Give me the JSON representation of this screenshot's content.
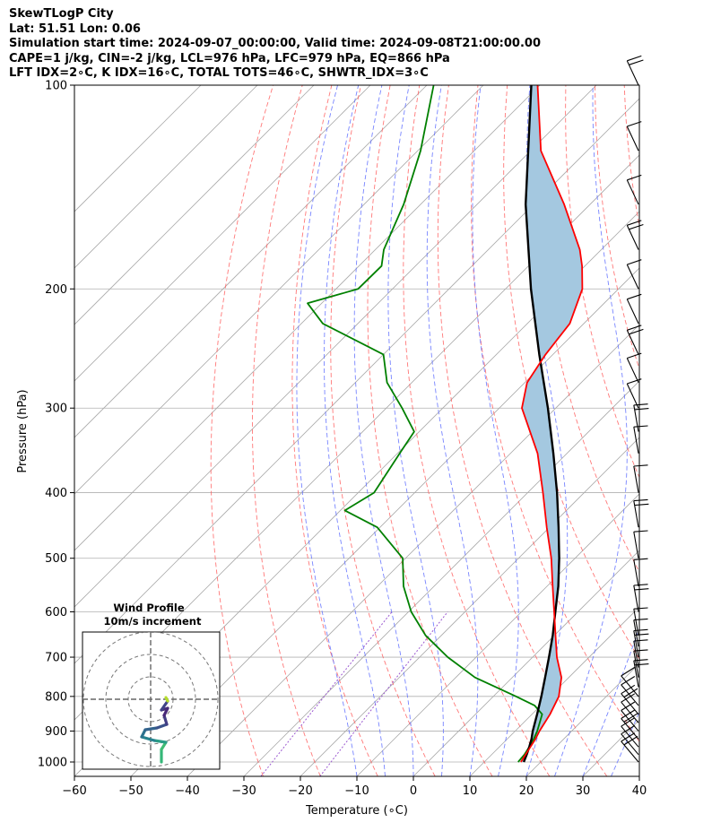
{
  "header": {
    "line1": "SkewTLogP City",
    "line2": "Lat: 51.51   Lon: 0.06",
    "line3": "Simulation start time: 2024-09-07_00:00:00, Valid time: 2024-09-08T21:00:00.00",
    "line4": "CAPE=1 j/kg, CIN=-2 j/kg, LCL=976 hPa, LFC=979 hPa, EQ=866 hPa",
    "line5": "LFT IDX=2∘C, K IDX=16∘C, TOTAL TOTS=46∘C, SHWTR_IDX=3∘C"
  },
  "chart_data": {
    "type": "line",
    "title": "SkewTLogP City",
    "xlabel": "Temperature (∘C)",
    "ylabel": "Pressure (hPa)",
    "xlim": [
      -60,
      40
    ],
    "ylim": [
      1050,
      100
    ],
    "x_ticks": [
      -60,
      -50,
      -40,
      -30,
      -20,
      -10,
      0,
      10,
      20,
      30,
      40
    ],
    "y_ticks": [
      1000,
      900,
      800,
      700,
      600,
      500,
      400,
      300,
      200,
      100
    ],
    "colors": {
      "temperature": "#ff0000",
      "dewpoint": "#008000",
      "parcel": "#000000",
      "cape_fill": "#a4c8e0",
      "dry_adiabat": "#ff6060",
      "moist_adiabat": "#6070ff",
      "mixing_ratio": "#9b59d0",
      "isotherm": "#aaaaaa"
    },
    "series": [
      {
        "name": "Temperature",
        "pressure": [
          1000,
          975,
          950,
          925,
          900,
          850,
          800,
          750,
          700,
          650,
          600,
          550,
          500,
          450,
          400,
          350,
          300,
          275,
          250,
          225,
          200,
          185,
          175,
          150,
          125,
          100
        ],
        "values": [
          16.5,
          16,
          15.5,
          15,
          14.3,
          13.2,
          11.6,
          8.7,
          4.3,
          0.2,
          -4.2,
          -9,
          -14.2,
          -20.5,
          -27.3,
          -35.2,
          -46,
          -49.6,
          -51.3,
          -52.5,
          -56.4,
          -60.5,
          -63.8,
          -74.6,
          -88.2,
          -100.4
        ]
      },
      {
        "name": "Dewpoint",
        "pressure": [
          1000,
          975,
          950,
          925,
          900,
          850,
          825,
          800,
          750,
          700,
          650,
          600,
          550,
          500,
          450,
          425,
          400,
          350,
          325,
          300,
          275,
          250,
          225,
          210,
          200,
          185,
          175,
          150,
          125,
          100
        ],
        "values": [
          16,
          15.8,
          15.3,
          14.7,
          13.9,
          11.8,
          8.9,
          4,
          -6.6,
          -15,
          -22.8,
          -29.5,
          -35.4,
          -40.5,
          -50.5,
          -59.2,
          -57.2,
          -59.6,
          -60.9,
          -67.2,
          -74.4,
          -80,
          -96.2,
          -102.5,
          -96.1,
          -96,
          -98.5,
          -103,
          -109.5,
          -118.8
        ]
      },
      {
        "name": "Parcel",
        "pressure": [
          1000,
          975,
          950,
          925,
          900,
          850,
          800,
          750,
          700,
          650,
          600,
          550,
          500,
          450,
          400,
          350,
          300,
          250,
          200,
          150,
          100
        ],
        "values": [
          17,
          16.2,
          15.3,
          14.3,
          13.1,
          10.9,
          8.5,
          5.8,
          2.9,
          -0.3,
          -4,
          -8,
          -12.8,
          -18.4,
          -24.8,
          -32.4,
          -41.4,
          -52.4,
          -65.5,
          -81.4,
          -101.5
        ]
      }
    ],
    "wind_barbs_pressure": [
      1000,
      975,
      950,
      925,
      900,
      875,
      850,
      825,
      800,
      775,
      750,
      725,
      700,
      675,
      650,
      600,
      550,
      500,
      450,
      400,
      350,
      325,
      300,
      275,
      250,
      225,
      200,
      175,
      150,
      125,
      100
    ],
    "inset": {
      "title": "Wind Profile",
      "subtitle": "10m/s increment"
    }
  }
}
